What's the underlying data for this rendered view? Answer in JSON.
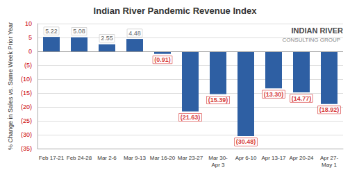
{
  "chart_data": {
    "type": "bar",
    "title": "Indian River Pandemic Revenue Index",
    "ylabel": "% Change in Sales vs. Same Week Prior Year",
    "annotations": [
      "INDIAN RIVER",
      "CONSULTING GROUP"
    ],
    "categories": [
      "Feb 17-21",
      "Feb 24-28",
      "Mar 2-6",
      "Mar 9-13",
      "Mar 16-20",
      "Mar 23-27",
      "Mar 30-\nApr 3",
      "Apr 6-10",
      "Apr 13-17",
      "Apr 20-24",
      "Apr 27-\nMay 1"
    ],
    "values": [
      5.22,
      5.08,
      2.55,
      4.48,
      -0.91,
      -21.63,
      -15.39,
      -30.48,
      -13.3,
      -14.77,
      -18.92
    ],
    "value_labels": [
      "5.22",
      "5.08",
      "2.55",
      "4.48",
      "(0.91)",
      "(21.63)",
      "(15.39)",
      "(30.48)",
      "(13.30)",
      "(14.77)",
      "(18.92)"
    ],
    "color": "#2E5FA3",
    "ylim": [
      -35,
      10
    ],
    "yticks": [
      10,
      5,
      0,
      {
        "value": -5,
        "label": "(5)"
      },
      {
        "value": -10,
        "label": "(10)"
      },
      {
        "value": -15,
        "label": "(15)"
      },
      {
        "value": -20,
        "label": "(20)"
      },
      {
        "value": -25,
        "label": "(25)"
      },
      {
        "value": -30,
        "label": "(30)"
      },
      {
        "value": -35,
        "label": "(35)"
      }
    ],
    "grid": true,
    "data_labels": true
  }
}
